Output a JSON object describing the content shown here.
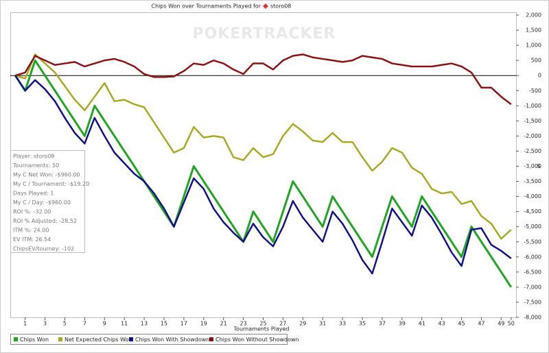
{
  "chart_data": {
    "type": "line",
    "title": "Chips Won over Tournaments Played for",
    "title_player": "storo08",
    "watermark": "POKERTRACKER",
    "x_label": "Tournaments Played",
    "y_label": "$",
    "x": [
      0,
      1,
      2,
      3,
      4,
      5,
      6,
      7,
      8,
      9,
      10,
      11,
      12,
      13,
      14,
      15,
      16,
      17,
      18,
      19,
      20,
      21,
      22,
      23,
      24,
      25,
      26,
      27,
      28,
      29,
      30,
      31,
      32,
      33,
      34,
      35,
      36,
      37,
      38,
      39,
      40,
      41,
      42,
      43,
      44,
      45,
      46,
      47,
      48,
      49,
      50
    ],
    "xlim": [
      -0.5,
      50.5
    ],
    "xticks": [
      1,
      3,
      5,
      7,
      9,
      11,
      13,
      15,
      17,
      19,
      21,
      23,
      25,
      27,
      29,
      31,
      33,
      35,
      37,
      39,
      41,
      43,
      45,
      47,
      49,
      50
    ],
    "ylim": [
      -8000,
      2000
    ],
    "yticks": [
      {
        "value": 2000,
        "label": "2,000"
      },
      {
        "value": 1500,
        "label": "1,500"
      },
      {
        "value": 1000,
        "label": "1,000"
      },
      500,
      0,
      -500,
      {
        "value": -1000,
        "label": "-1,000"
      },
      {
        "value": -1500,
        "label": "-1,500"
      },
      {
        "value": -2000,
        "label": "-2,000"
      },
      {
        "value": -2500,
        "label": "-2,500"
      },
      {
        "value": -3000,
        "label": "-3,000"
      },
      {
        "value": -3500,
        "label": "-3,500"
      },
      {
        "value": -4000,
        "label": "-4,000"
      },
      {
        "value": -4500,
        "label": "-4,500"
      },
      {
        "value": -5000,
        "label": "-5,000"
      },
      {
        "value": -5500,
        "label": "-5,500"
      },
      {
        "value": -6000,
        "label": "-6,000"
      },
      {
        "value": -6500,
        "label": "-6,500"
      },
      {
        "value": -7000,
        "label": "-7,000"
      },
      {
        "value": -7500,
        "label": "-7,500"
      },
      {
        "value": -8000,
        "label": "-8,000"
      }
    ],
    "zero_line": 0,
    "series": [
      {
        "name": "Chips Won",
        "color": "#1fa51f",
        "values": [
          0,
          -500,
          500,
          0,
          -500,
          -1000,
          -1500,
          -2000,
          -1000,
          -1500,
          -2000,
          -2500,
          -3000,
          -3500,
          -4000,
          -4500,
          -5000,
          -4000,
          -3000,
          -3500,
          -4000,
          -4500,
          -5000,
          -5500,
          -4500,
          -5000,
          -5500,
          -4500,
          -3500,
          -4000,
          -4500,
          -5000,
          -4000,
          -4500,
          -5000,
          -5500,
          -6000,
          -5000,
          -4000,
          -4500,
          -5000,
          -4000,
          -4500,
          -5000,
          -5500,
          -6000,
          -5000,
          -5500,
          -6000,
          -6500,
          -7000
        ]
      },
      {
        "name": "Net Expected Chips Won",
        "color": "#a8a822",
        "values": [
          0,
          -100,
          700,
          400,
          100,
          -350,
          -800,
          -1150,
          -700,
          -250,
          -850,
          -800,
          -950,
          -1050,
          -1550,
          -2050,
          -2550,
          -2400,
          -1700,
          -2050,
          -2000,
          -2050,
          -2700,
          -2800,
          -2400,
          -2700,
          -2600,
          -2000,
          -1600,
          -1850,
          -2150,
          -2200,
          -1900,
          -2200,
          -2200,
          -2700,
          -3150,
          -2850,
          -2400,
          -2550,
          -3050,
          -3250,
          -3750,
          -3900,
          -3850,
          -4250,
          -4150,
          -4650,
          -4900,
          -5400,
          -5100
        ]
      },
      {
        "name": "Chips Won With Showdown",
        "color": "#10108a",
        "values": [
          0,
          -500,
          -150,
          -450,
          -850,
          -1400,
          -1900,
          -2250,
          -1400,
          -2000,
          -2550,
          -2900,
          -3250,
          -3500,
          -3900,
          -4400,
          -5000,
          -4200,
          -3400,
          -3750,
          -4400,
          -4850,
          -5200,
          -5500,
          -4900,
          -5350,
          -5650,
          -5000,
          -4150,
          -4700,
          -5100,
          -5500,
          -4500,
          -4900,
          -5450,
          -6100,
          -6550,
          -5500,
          -4400,
          -4850,
          -5300,
          -4300,
          -4700,
          -5250,
          -5850,
          -6300,
          -5100,
          -5050,
          -5600,
          -5800,
          -6050
        ]
      },
      {
        "name": "Chips Won Without Showdown",
        "color": "#8b1212",
        "values": [
          0,
          100,
          650,
          500,
          350,
          400,
          450,
          300,
          400,
          500,
          550,
          450,
          300,
          50,
          -50,
          -50,
          -30,
          150,
          400,
          350,
          500,
          400,
          200,
          50,
          400,
          400,
          200,
          500,
          650,
          700,
          600,
          550,
          500,
          450,
          500,
          650,
          600,
          550,
          400,
          350,
          300,
          300,
          300,
          350,
          400,
          300,
          100,
          -400,
          -400,
          -700,
          -950
        ]
      }
    ],
    "info_box": [
      "Player: storo08",
      "Tournaments: 50",
      "My C Net Won: -$960.00",
      "My C / Tournament: -$19.20",
      "Days Played: 1",
      "My C / Day: -$960.00",
      "ROI %: -32.00",
      "ROI % Adjusted: -28.52",
      "ITM %: 24.00",
      "EV ITM: 26.54",
      "ChipsEV/tourney: -102"
    ]
  }
}
